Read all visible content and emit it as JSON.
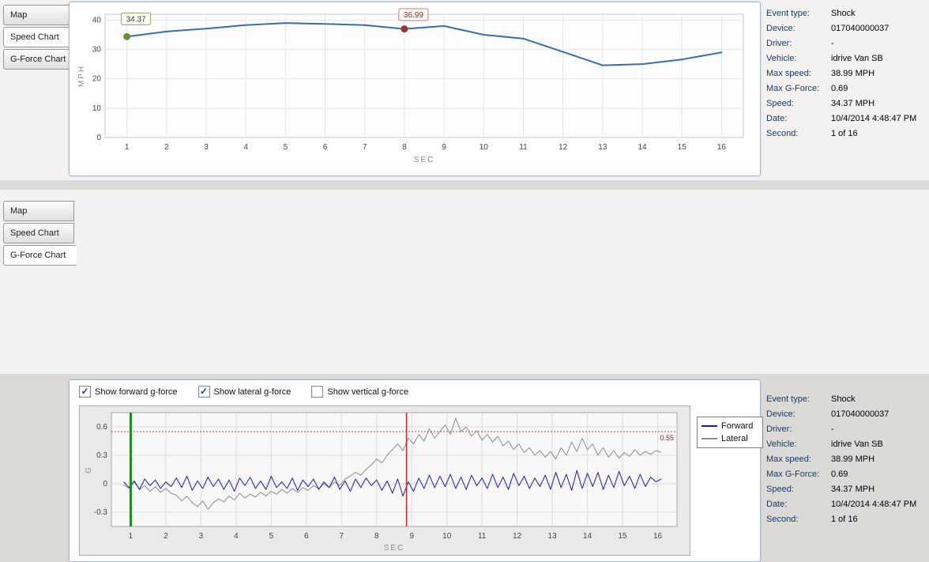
{
  "tabs": [
    {
      "label": "Map"
    },
    {
      "label": "Speed Chart"
    },
    {
      "label": "G-Force Chart"
    }
  ],
  "top_panel": {
    "selected_tab_index": 1
  },
  "bottom_panel": {
    "selected_tab_index": 2,
    "checkboxes": [
      {
        "label": "Show forward g-force",
        "checked": true
      },
      {
        "label": "Show lateral g-force",
        "checked": true
      },
      {
        "label": "Show vertical g-force",
        "checked": false
      }
    ]
  },
  "info": {
    "rows": [
      {
        "label": "Event type:",
        "value": "Shock"
      },
      {
        "label": "Device:",
        "value": "017040000037"
      },
      {
        "label": "Driver:",
        "value": "-"
      },
      {
        "label": "Vehicle:",
        "value": "idrive Van SB"
      },
      {
        "label": "Max speed:",
        "value": "38.99 MPH"
      },
      {
        "label": "Max G-Force:",
        "value": "0.69"
      },
      {
        "label": "Speed:",
        "value": "34.37 MPH"
      },
      {
        "label": "Date:",
        "value": "10/4/2014 4:48:47 PM"
      },
      {
        "label": "Second:",
        "value": "1 of 16"
      }
    ]
  },
  "chart_data": [
    {
      "type": "line",
      "title": "Speed Chart",
      "xlabel": "SEC",
      "ylabel": "MPH",
      "ylim": [
        0,
        40
      ],
      "yticks": [
        0,
        10,
        20,
        30,
        40
      ],
      "xticks": [
        1,
        2,
        3,
        4,
        5,
        6,
        7,
        8,
        9,
        10,
        11,
        12,
        13,
        14,
        15,
        16
      ],
      "line_color": "#3a6ea5",
      "x": [
        1,
        2,
        3,
        4,
        5,
        6,
        7,
        8,
        9,
        10,
        11,
        12,
        13,
        14,
        15,
        16
      ],
      "values": [
        34.37,
        36.1,
        37.1,
        38.3,
        38.99,
        38.7,
        38.3,
        36.99,
        38.0,
        35.0,
        33.7,
        29.2,
        24.6,
        25.0,
        26.6,
        29.0
      ],
      "annotations": [
        {
          "x": 1,
          "y": 34.37,
          "label": "34.37",
          "dot_color": "#6f8f3f",
          "box_border": "#94a06a",
          "box_fill": "#fdfdf2",
          "text_color": "#3d3d3d"
        },
        {
          "x": 8,
          "y": 36.99,
          "label": "36.99",
          "dot_color": "#9b3333",
          "box_border": "#ba8383",
          "box_fill": "#fdf6f5",
          "text_color": "#8b2a2a"
        }
      ]
    },
    {
      "type": "line",
      "title": "G-Force Chart",
      "xlabel": "SEC",
      "ylabel": "G",
      "ylim": [
        -0.45,
        0.75
      ],
      "yticks": [
        -0.3,
        0,
        0.3,
        0.6
      ],
      "xticks": [
        1,
        2,
        3,
        4,
        5,
        6,
        7,
        8,
        9,
        10,
        11,
        12,
        13,
        14,
        15,
        16
      ],
      "legend_position": "right",
      "x_start": 0.8,
      "x_step": 0.15,
      "threshold": {
        "y": 0.55,
        "label": "0.55",
        "color": "#cc3b3b",
        "label_color": "#8b2020"
      },
      "vlines": [
        {
          "x": 1,
          "color": "#1c8c1c",
          "width": 3
        },
        {
          "x": 8.85,
          "color": "#cc2222",
          "width": 1.5
        }
      ],
      "series": [
        {
          "name": "Forward",
          "color": "#1a1ab8",
          "values": [
            0.02,
            -0.04,
            0.03,
            -0.06,
            0.05,
            -0.02,
            0.04,
            -0.05,
            0.02,
            -0.03,
            0.06,
            -0.04,
            0.08,
            -0.07,
            0.03,
            -0.05,
            0.07,
            -0.03,
            0.05,
            -0.06,
            0.04,
            -0.08,
            0.06,
            -0.02,
            0.07,
            -0.05,
            0.03,
            -0.06,
            0.08,
            -0.04,
            0.02,
            -0.05,
            0.06,
            -0.07,
            0.04,
            -0.03,
            0.05,
            -0.06,
            0.02,
            -0.04,
            0.07,
            -0.06,
            0.03,
            -0.08,
            0.05,
            -0.04,
            0.06,
            -0.02,
            0.04,
            -0.07,
            0.03,
            -0.1,
            0.05,
            -0.13,
            0.02,
            -0.08,
            0.06,
            -0.05,
            0.09,
            -0.04,
            0.08,
            -0.03,
            0.1,
            -0.05,
            0.07,
            -0.06,
            0.09,
            -0.02,
            0.06,
            -0.05,
            0.1,
            -0.04,
            0.07,
            -0.06,
            0.11,
            -0.02,
            0.08,
            -0.05,
            0.06,
            -0.03,
            0.09,
            -0.06,
            0.12,
            -0.04,
            0.1,
            -0.07,
            0.14,
            -0.05,
            0.11,
            -0.03,
            0.12,
            -0.06,
            0.09,
            -0.04,
            0.13,
            -0.02,
            0.08,
            -0.05,
            0.1,
            -0.03,
            0.07,
            0.02,
            0.05
          ]
        },
        {
          "name": "Lateral",
          "color": "#8c8c8c",
          "values": [
            -0.01,
            -0.05,
            0.02,
            -0.06,
            -0.02,
            -0.08,
            -0.03,
            -0.09,
            -0.05,
            -0.1,
            -0.12,
            -0.18,
            -0.13,
            -0.2,
            -0.24,
            -0.18,
            -0.27,
            -0.2,
            -0.16,
            -0.19,
            -0.13,
            -0.17,
            -0.1,
            -0.15,
            -0.11,
            -0.14,
            -0.09,
            -0.13,
            -0.08,
            -0.11,
            -0.06,
            -0.1,
            -0.05,
            -0.09,
            -0.04,
            -0.07,
            -0.02,
            -0.05,
            0.0,
            -0.04,
            0.02,
            -0.02,
            0.05,
            0.08,
            0.12,
            0.09,
            0.15,
            0.2,
            0.26,
            0.22,
            0.3,
            0.36,
            0.42,
            0.35,
            0.48,
            0.42,
            0.52,
            0.45,
            0.58,
            0.48,
            0.55,
            0.62,
            0.52,
            0.69,
            0.55,
            0.6,
            0.5,
            0.56,
            0.46,
            0.52,
            0.44,
            0.5,
            0.4,
            0.45,
            0.36,
            0.42,
            0.33,
            0.38,
            0.3,
            0.35,
            0.28,
            0.34,
            0.26,
            0.38,
            0.3,
            0.44,
            0.34,
            0.48,
            0.36,
            0.42,
            0.3,
            0.38,
            0.28,
            0.35,
            0.27,
            0.33,
            0.29,
            0.36,
            0.3,
            0.34,
            0.31,
            0.35,
            0.33
          ]
        }
      ]
    }
  ]
}
